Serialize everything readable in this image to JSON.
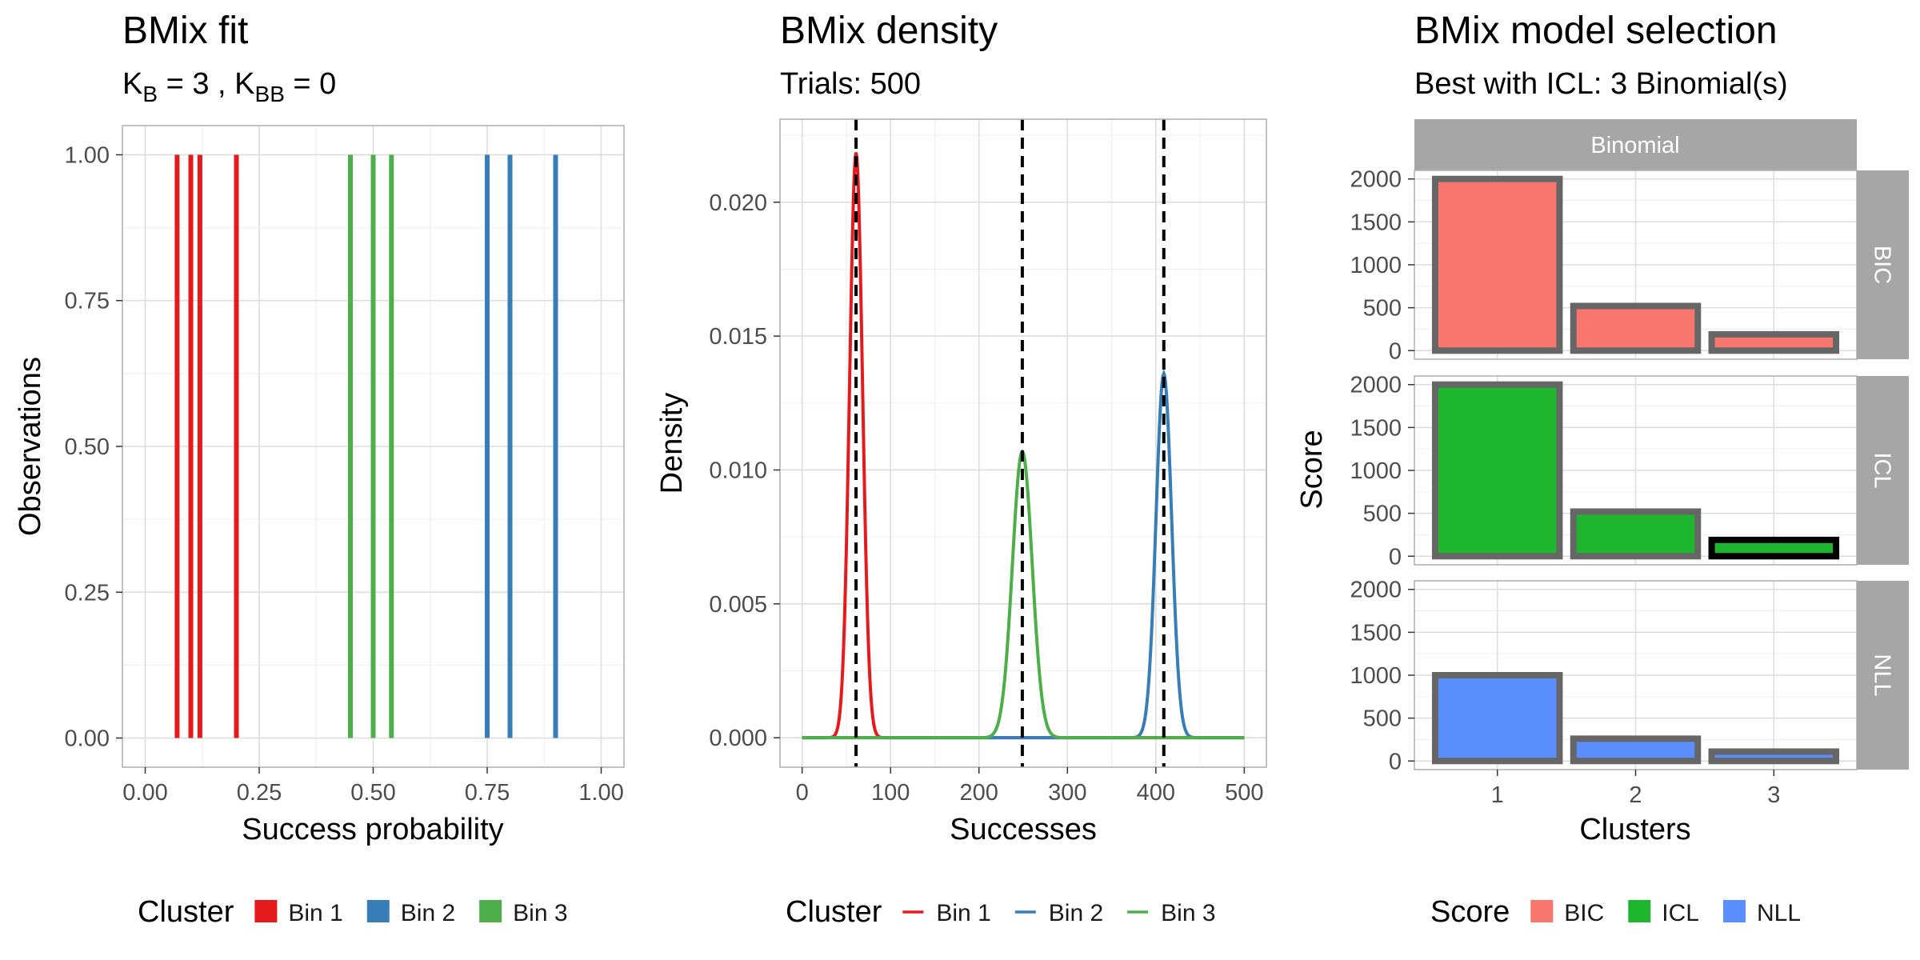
{
  "chart_data": [
    {
      "type": "bar",
      "title": "BMix fit",
      "subtitle": {
        "prefix": "K",
        "sub1": "B",
        "middle": " = 3 , K",
        "sub2": "BB",
        "suffix": " = 0"
      },
      "xlabel": "Success probability",
      "ylabel": "Observations",
      "xlim": [
        -0.05,
        1.05
      ],
      "ylim": [
        -0.05,
        1.05
      ],
      "xticks": [
        0.0,
        0.25,
        0.5,
        0.75,
        1.0
      ],
      "xtick_labels": [
        "0.00",
        "0.25",
        "0.50",
        "0.75",
        "1.00"
      ],
      "yticks": [
        0.0,
        0.25,
        0.5,
        0.75,
        1.0
      ],
      "ytick_labels": [
        "0.00",
        "0.25",
        "0.50",
        "0.75",
        "1.00"
      ],
      "grid": true,
      "series": [
        {
          "name": "Bin 1",
          "color": "#E41A1C",
          "x": [
            0.07,
            0.1,
            0.12,
            0.2
          ],
          "values": [
            1,
            1,
            1,
            1
          ]
        },
        {
          "name": "Bin 2",
          "color": "#377EB8",
          "x": [
            0.75,
            0.8,
            0.9
          ],
          "values": [
            1,
            1,
            1
          ]
        },
        {
          "name": "Bin 3",
          "color": "#4DAF4A",
          "x": [
            0.45,
            0.5,
            0.54
          ],
          "values": [
            1,
            1,
            1
          ]
        }
      ],
      "legend": {
        "title": "Cluster",
        "position": "bottom",
        "style": "fill",
        "items": [
          "Bin 1",
          "Bin 2",
          "Bin 3"
        ]
      }
    },
    {
      "type": "line",
      "title": "BMix density",
      "subtitle": "Trials: 500",
      "xlabel": "Successes",
      "ylabel": "Density",
      "xlim": [
        -25,
        525
      ],
      "ylim": [
        -0.0011,
        0.0231
      ],
      "xticks": [
        0,
        100,
        200,
        300,
        400,
        500
      ],
      "xtick_labels": [
        "0",
        "100",
        "200",
        "300",
        "400",
        "500"
      ],
      "yticks": [
        0.0,
        0.005,
        0.01,
        0.015,
        0.02
      ],
      "ytick_labels": [
        "0.000",
        "0.005",
        "0.010",
        "0.015",
        "0.020"
      ],
      "grid": true,
      "trials": 500,
      "series": [
        {
          "name": "Bin 1",
          "color": "#E41A1C",
          "mean": 61,
          "sd": 7.3,
          "weight": 0.4
        },
        {
          "name": "Bin 2",
          "color": "#377EB8",
          "mean": 409,
          "sd": 8.8,
          "weight": 0.3
        },
        {
          "name": "Bin 3",
          "color": "#4DAF4A",
          "mean": 249,
          "sd": 11.2,
          "weight": 0.3
        }
      ],
      "vlines": [
        61,
        249,
        409
      ],
      "legend": {
        "title": "Cluster",
        "position": "bottom",
        "style": "line",
        "items": [
          "Bin 1",
          "Bin 2",
          "Bin 3"
        ]
      }
    },
    {
      "type": "bar",
      "title": "BMix model selection",
      "subtitle": "Best with ICL: 3 Binomial(s)",
      "xlabel": "Clusters",
      "ylabel": "Score",
      "column_strip": "Binomial",
      "categories": [
        "1",
        "2",
        "3"
      ],
      "ylim": [
        -100,
        2100
      ],
      "yticks": [
        0,
        500,
        1000,
        1500,
        2000
      ],
      "ytick_labels": [
        "0",
        "500",
        "1000",
        "1500",
        "2000"
      ],
      "grid": true,
      "facets": [
        {
          "name": "BIC",
          "color": "#F8766D",
          "values": [
            2000,
            520,
            190
          ],
          "best_index": -1
        },
        {
          "name": "ICL",
          "color": "#1DB62E",
          "values": [
            2000,
            520,
            190
          ],
          "best_index": 2
        },
        {
          "name": "NLL",
          "color": "#5B8EFD",
          "values": [
            1000,
            260,
            110
          ],
          "best_index": -1
        }
      ],
      "legend": {
        "title": "Score",
        "position": "bottom",
        "items": [
          "BIC",
          "ICL",
          "NLL"
        ]
      }
    }
  ]
}
